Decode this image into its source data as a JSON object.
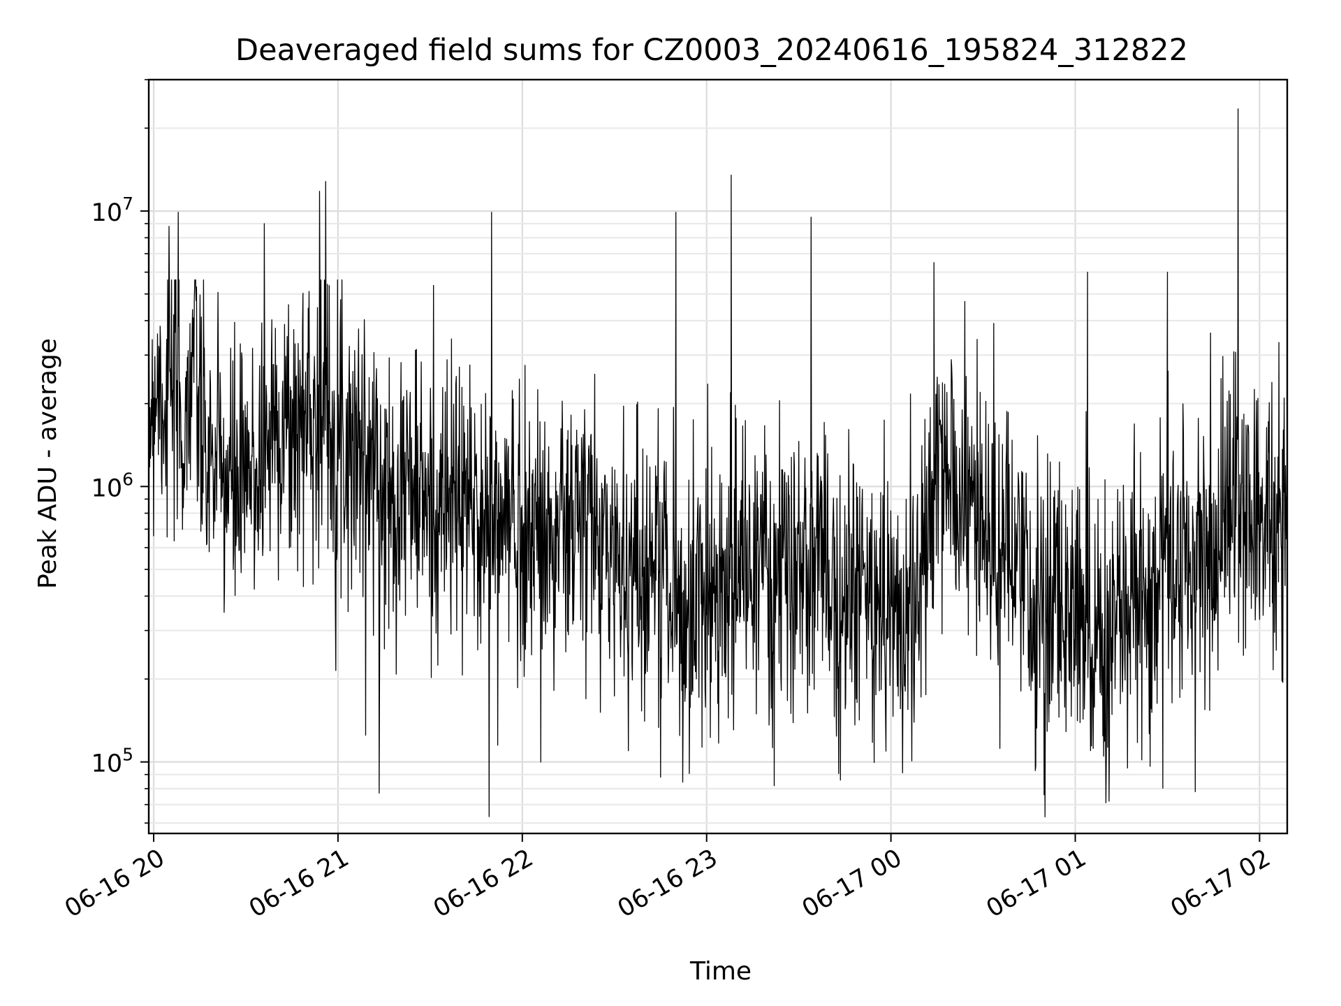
{
  "chart_data": {
    "type": "line",
    "title": "Deaveraged field sums for CZ0003_20240616_195824_312822",
    "xlabel": "Time",
    "ylabel": "Peak ADU - average",
    "xlim": [
      "2024-06-16T19:58:24",
      "2024-06-17T02:09:00"
    ],
    "ylim": [
      55000,
      30000000
    ],
    "yscale": "log",
    "grid": true,
    "x_ticks": [
      "06-16 20",
      "06-16 21",
      "06-16 22",
      "06-16 23",
      "06-17 00",
      "06-17 01",
      "06-17 02"
    ],
    "y_ticks": [
      {
        "base": "10",
        "exp": "5"
      },
      {
        "base": "10",
        "exp": "6"
      },
      {
        "base": "10",
        "exp": "7"
      }
    ],
    "series": [
      {
        "color": "#000000",
        "x": [
          "2024-06-16T19:58:24",
          "2024-06-16T20:01:00",
          "2024-06-16T20:04:00",
          "2024-06-16T20:07:00",
          "2024-06-16T20:10:00",
          "2024-06-16T20:13:00",
          "2024-06-16T20:16:00",
          "2024-06-16T20:20:00",
          "2024-06-16T20:25:00",
          "2024-06-16T20:30:00",
          "2024-06-16T20:35:00",
          "2024-06-16T20:40:00",
          "2024-06-16T20:45:00",
          "2024-06-16T20:50:00",
          "2024-06-16T20:55:00",
          "2024-06-16T21:00:00",
          "2024-06-16T21:02:00",
          "2024-06-16T21:08:00",
          "2024-06-16T21:15:00",
          "2024-06-16T21:22:00",
          "2024-06-16T21:30:00",
          "2024-06-16T21:38:00",
          "2024-06-16T21:45:00",
          "2024-06-16T21:50:00",
          "2024-06-16T21:55:00",
          "2024-06-16T22:00:00",
          "2024-06-16T22:10:00",
          "2024-06-16T22:20:00",
          "2024-06-16T22:30:00",
          "2024-06-16T22:40:00",
          "2024-06-16T22:45:00",
          "2024-06-16T22:50:00",
          "2024-06-16T22:55:00",
          "2024-06-16T23:00:00",
          "2024-06-16T23:08:00",
          "2024-06-16T23:15:00",
          "2024-06-16T23:25:00",
          "2024-06-16T23:35:00",
          "2024-06-16T23:45:00",
          "2024-06-16T23:55:00",
          "2024-06-17T00:00:00",
          "2024-06-17T00:10:00",
          "2024-06-17T00:15:00",
          "2024-06-17T00:25:00",
          "2024-06-17T00:35:00",
          "2024-06-17T00:45:00",
          "2024-06-17T00:55:00",
          "2024-06-17T01:00:00",
          "2024-06-17T01:05:00",
          "2024-06-17T01:10:00",
          "2024-06-17T01:20:00",
          "2024-06-17T01:30:00",
          "2024-06-17T01:38:00",
          "2024-06-17T01:45:00",
          "2024-06-17T01:50:00",
          "2024-06-17T01:55:00",
          "2024-06-17T02:00:00",
          "2024-06-17T02:05:00",
          "2024-06-17T02:09:00"
        ],
        "values": [
          1800000,
          2600000,
          2000000,
          2200000,
          1500000,
          3500000,
          1300000,
          1200000,
          1000000,
          950000,
          1300000,
          1800000,
          1500000,
          1900000,
          2000000,
          1700000,
          1500000,
          1400000,
          900000,
          1100000,
          800000,
          900000,
          800000,
          700000,
          800000,
          700000,
          650000,
          750000,
          550000,
          500000,
          600000,
          350000,
          300000,
          500000,
          450000,
          550000,
          450000,
          500000,
          420000,
          380000,
          360000,
          400000,
          1100000,
          900000,
          600000,
          380000,
          330000,
          420000,
          350000,
          260000,
          380000,
          480000,
          500000,
          650000,
          800000,
          900000,
          850000,
          700000,
          650000
        ],
        "spikes": [
          {
            "x": "2024-06-16T20:05:00",
            "value": 8800000
          },
          {
            "x": "2024-06-16T20:08:00",
            "value": 9900000
          },
          {
            "x": "2024-06-16T20:36:00",
            "value": 9000000
          },
          {
            "x": "2024-06-16T20:54:00",
            "value": 11800000
          },
          {
            "x": "2024-06-16T20:56:00",
            "value": 12800000
          },
          {
            "x": "2024-06-16T21:50:00",
            "value": 9900000
          },
          {
            "x": "2024-06-16T22:50:00",
            "value": 9900000
          },
          {
            "x": "2024-06-16T23:08:00",
            "value": 13500000
          },
          {
            "x": "2024-06-16T23:34:00",
            "value": 9500000
          },
          {
            "x": "2024-06-17T00:14:00",
            "value": 6500000
          },
          {
            "x": "2024-06-17T01:04:00",
            "value": 6000000
          },
          {
            "x": "2024-06-17T01:30:00",
            "value": 6000000
          },
          {
            "x": "2024-06-17T01:53:00",
            "value": 23500000
          }
        ],
        "dips": [
          {
            "x": "2024-06-16T21:09:00",
            "value": 125000
          },
          {
            "x": "2024-06-16T21:52:00",
            "value": 115000
          },
          {
            "x": "2024-06-16T22:45:00",
            "value": 88000
          },
          {
            "x": "2024-06-16T23:22:00",
            "value": 82000
          },
          {
            "x": "2024-06-17T00:47:00",
            "value": 93000
          },
          {
            "x": "2024-06-17T01:11:00",
            "value": 72000
          },
          {
            "x": "2024-06-17T01:17:00",
            "value": 95000
          }
        ]
      }
    ]
  }
}
